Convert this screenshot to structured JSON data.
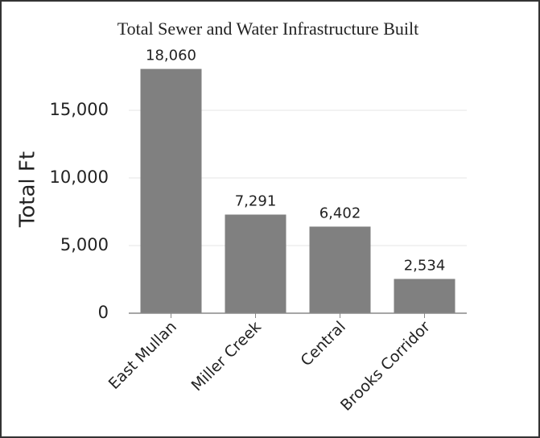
{
  "chart_data": {
    "type": "bar",
    "title": "Total Sewer and Water Infrastructure Built",
    "y_label": "Total Ft",
    "categories": [
      "East Mullan",
      "Miller Creek",
      "Central",
      "Brooks Corridor"
    ],
    "values": [
      18060,
      7291,
      6402,
      2534
    ],
    "value_labels": [
      "18,060",
      "7,291",
      "6,402",
      "2,534"
    ],
    "color": "#808080",
    "ylim": [
      0,
      20000
    ],
    "yticks": [
      0,
      {
        "value": 5000,
        "label": "5,000"
      },
      {
        "value": 10000,
        "label": "10,000"
      },
      {
        "value": 15000,
        "label": "15,000"
      }
    ],
    "grid": true
  }
}
